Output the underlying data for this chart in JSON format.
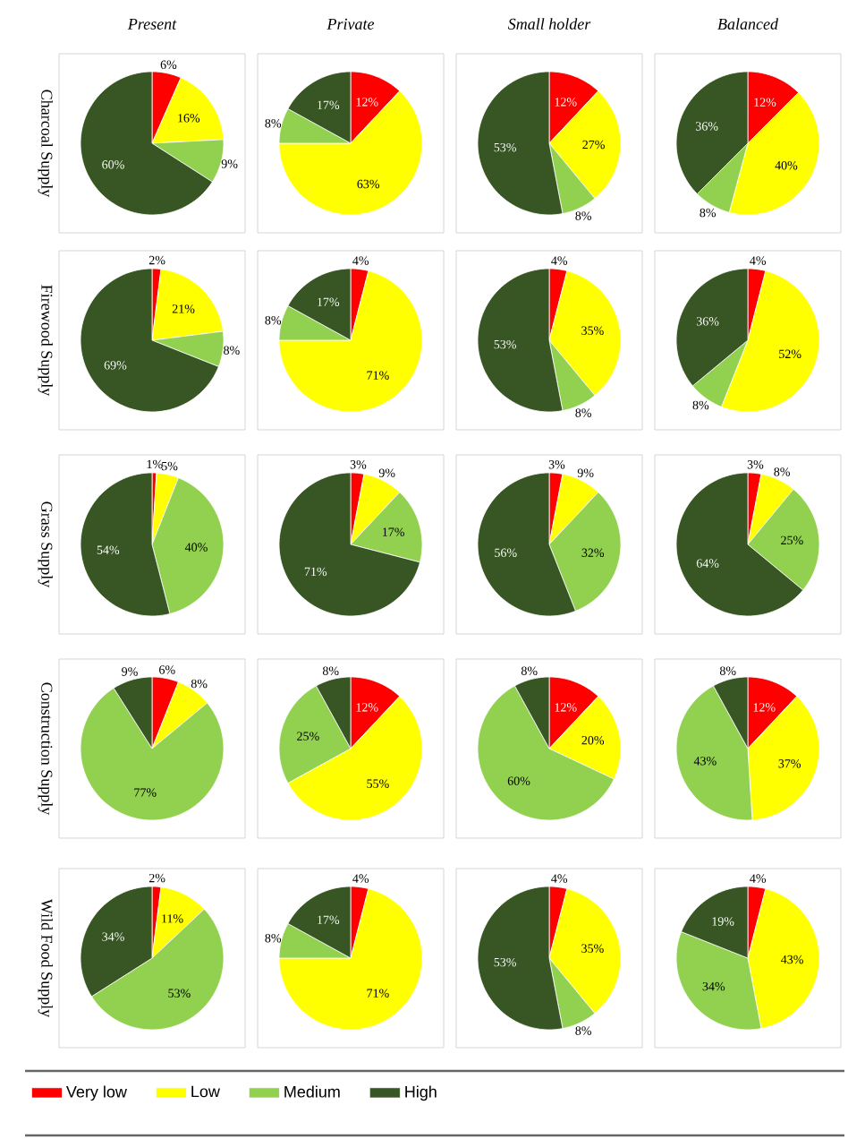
{
  "chart_data": [
    {
      "type": "pie",
      "title": "Present",
      "ylabel": "Charcoal Supply",
      "categories": [
        null,
        null,
        null,
        null
      ],
      "values": [
        6,
        16,
        9,
        60
      ],
      "value_labels": [
        "6%",
        "16%",
        "9%",
        "60%"
      ],
      "colors": [
        "#ff0000",
        "#ffff00",
        "#92d050",
        "#375623"
      ]
    },
    {
      "type": "pie",
      "title": "Private",
      "categories": [
        null,
        null,
        null,
        null
      ],
      "values": [
        12,
        63,
        8,
        17
      ],
      "value_labels": [
        "12%",
        "63%",
        "8%",
        "17%"
      ],
      "colors": [
        "#ff0000",
        "#ffff00",
        "#92d050",
        "#375623"
      ]
    },
    {
      "type": "pie",
      "title": "Small holder",
      "categories": [
        null,
        null,
        null,
        null
      ],
      "values": [
        12,
        27,
        8,
        53
      ],
      "value_labels": [
        "12%",
        "27%",
        "8%",
        "53%"
      ],
      "colors": [
        "#ff0000",
        "#ffff00",
        "#92d050",
        "#375623"
      ]
    },
    {
      "type": "pie",
      "title": "Balanced",
      "categories": [
        null,
        null,
        null,
        null
      ],
      "values": [
        12,
        40,
        8,
        36
      ],
      "value_labels": [
        "12%",
        "40%",
        "8%",
        "36%"
      ],
      "colors": [
        "#ff0000",
        "#ffff00",
        "#92d050",
        "#375623"
      ]
    },
    {
      "type": "pie",
      "ylabel": "Firewood Supply",
      "categories": [
        null,
        null,
        null,
        null
      ],
      "values": [
        2,
        21,
        8,
        69
      ],
      "value_labels": [
        "2%",
        "21%",
        "8%",
        "69%"
      ],
      "colors": [
        "#ff0000",
        "#ffff00",
        "#92d050",
        "#375623"
      ]
    },
    {
      "type": "pie",
      "categories": [
        null,
        null,
        null,
        null
      ],
      "values": [
        4,
        71,
        8,
        17
      ],
      "value_labels": [
        "4%",
        "71%",
        "8%",
        "17%"
      ],
      "colors": [
        "#ff0000",
        "#ffff00",
        "#92d050",
        "#375623"
      ]
    },
    {
      "type": "pie",
      "categories": [
        null,
        null,
        null,
        null
      ],
      "values": [
        4,
        35,
        8,
        53
      ],
      "value_labels": [
        "4%",
        "35%",
        "8%",
        "53%"
      ],
      "colors": [
        "#ff0000",
        "#ffff00",
        "#92d050",
        "#375623"
      ]
    },
    {
      "type": "pie",
      "categories": [
        null,
        null,
        null,
        null
      ],
      "values": [
        4,
        52,
        8,
        36
      ],
      "value_labels": [
        "4%",
        "52%",
        "8%",
        "36%"
      ],
      "colors": [
        "#ff0000",
        "#ffff00",
        "#92d050",
        "#375623"
      ]
    },
    {
      "type": "pie",
      "ylabel": "Grass Supply",
      "categories": [
        null,
        null,
        null,
        null
      ],
      "values": [
        1,
        5,
        40,
        54
      ],
      "value_labels": [
        "1%",
        "5%",
        "40%",
        "54%"
      ],
      "colors": [
        "#ff0000",
        "#ffff00",
        "#92d050",
        "#375623"
      ]
    },
    {
      "type": "pie",
      "categories": [
        null,
        null,
        null,
        null
      ],
      "values": [
        3,
        9,
        17,
        71
      ],
      "value_labels": [
        "3%",
        "9%",
        "17%",
        "71%"
      ],
      "colors": [
        "#ff0000",
        "#ffff00",
        "#92d050",
        "#375623"
      ]
    },
    {
      "type": "pie",
      "categories": [
        null,
        null,
        null,
        null
      ],
      "values": [
        3,
        9,
        32,
        56
      ],
      "value_labels": [
        "3%",
        "9%",
        "32%",
        "56%"
      ],
      "colors": [
        "#ff0000",
        "#ffff00",
        "#92d050",
        "#375623"
      ]
    },
    {
      "type": "pie",
      "categories": [
        null,
        null,
        null,
        null
      ],
      "values": [
        3,
        8,
        25,
        64
      ],
      "value_labels": [
        "3%",
        "8%",
        "25%",
        "64%"
      ],
      "colors": [
        "#ff0000",
        "#ffff00",
        "#92d050",
        "#375623"
      ]
    },
    {
      "type": "pie",
      "ylabel": "Construction Supply",
      "categories": [
        null,
        null,
        null,
        null
      ],
      "values": [
        6,
        8,
        77,
        9
      ],
      "value_labels": [
        "6%",
        "8%",
        "77%",
        "9%"
      ],
      "colors": [
        "#ff0000",
        "#ffff00",
        "#92d050",
        "#375623"
      ]
    },
    {
      "type": "pie",
      "categories": [
        null,
        null,
        null,
        null
      ],
      "values": [
        12,
        55,
        25,
        8
      ],
      "value_labels": [
        "12%",
        "55%",
        "25%",
        "8%"
      ],
      "colors": [
        "#ff0000",
        "#ffff00",
        "#92d050",
        "#375623"
      ]
    },
    {
      "type": "pie",
      "categories": [
        null,
        null,
        null,
        null
      ],
      "values": [
        12,
        20,
        60,
        8
      ],
      "value_labels": [
        "12%",
        "20%",
        "60%",
        "8%"
      ],
      "colors": [
        "#ff0000",
        "#ffff00",
        "#92d050",
        "#375623"
      ]
    },
    {
      "type": "pie",
      "categories": [
        null,
        null,
        null,
        null
      ],
      "values": [
        12,
        37,
        43,
        8
      ],
      "value_labels": [
        "12%",
        "37%",
        "43%",
        "8%"
      ],
      "colors": [
        "#ff0000",
        "#ffff00",
        "#92d050",
        "#375623"
      ]
    },
    {
      "type": "pie",
      "ylabel": "Wild Food Supply",
      "legend": "bottom",
      "categories": [
        "Very low",
        "Low",
        "Medium",
        "High"
      ],
      "values": [
        2,
        11,
        53,
        34
      ],
      "value_labels": [
        "2%",
        "11%",
        "53%",
        "34%"
      ],
      "colors": [
        "#ff0000",
        "#ffff00",
        "#92d050",
        "#375623"
      ]
    },
    {
      "type": "pie",
      "categories": [
        null,
        null,
        null,
        null
      ],
      "values": [
        4,
        71,
        8,
        17
      ],
      "value_labels": [
        "4%",
        "71%",
        "8%",
        "17%"
      ],
      "colors": [
        "#ff0000",
        "#ffff00",
        "#92d050",
        "#375623"
      ]
    },
    {
      "type": "pie",
      "categories": [
        null,
        null,
        null,
        null
      ],
      "values": [
        4,
        35,
        8,
        53
      ],
      "value_labels": [
        "4%",
        "35%",
        "8%",
        "53%"
      ],
      "colors": [
        "#ff0000",
        "#ffff00",
        "#92d050",
        "#375623"
      ]
    },
    {
      "type": "pie",
      "categories": [
        null,
        null,
        null,
        null
      ],
      "values": [
        4,
        43,
        34,
        19
      ],
      "value_labels": [
        "4%",
        "43%",
        "34%",
        "19%"
      ],
      "colors": [
        "#ff0000",
        "#ffff00",
        "#92d050",
        "#375623"
      ]
    }
  ]
}
